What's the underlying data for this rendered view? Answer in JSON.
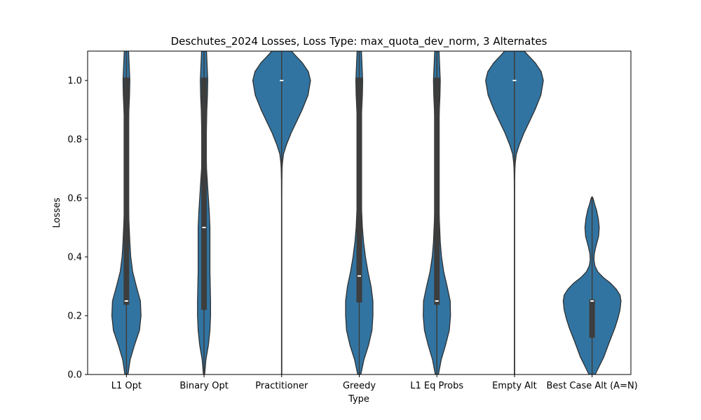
{
  "chart_data": {
    "type": "violin",
    "title": "Deschutes_2024 Losses, Loss Type: max_quota_dev_norm, 3 Alternates",
    "xlabel": "Type",
    "ylabel": "Losses",
    "ylim": [
      0.0,
      1.1
    ],
    "yticks": [
      0.0,
      0.2,
      0.4,
      0.6,
      0.8,
      1.0
    ],
    "ytick_labels": [
      "0.0",
      "0.2",
      "0.4",
      "0.6",
      "0.8",
      "1.0"
    ],
    "categories": [
      "L1 Opt",
      "Binary Opt",
      "Practitioner",
      "Greedy",
      "L1 Eq Probs",
      "Empty Alt",
      "Best Case Alt (A=N)"
    ],
    "colors": {
      "fill": "#3274a1",
      "edge": "#2d2d2d",
      "box": "#3d3d3d",
      "median": "#ffffff"
    },
    "violins": [
      {
        "name": "L1 Opt",
        "q1": 0.237,
        "median": 0.25,
        "q3": 1.01,
        "profile": [
          [
            0.0,
            0.05
          ],
          [
            0.05,
            0.12
          ],
          [
            0.1,
            0.26
          ],
          [
            0.15,
            0.42
          ],
          [
            0.2,
            0.47
          ],
          [
            0.25,
            0.45
          ],
          [
            0.3,
            0.32
          ],
          [
            0.35,
            0.2
          ],
          [
            0.4,
            0.14
          ],
          [
            0.45,
            0.11
          ],
          [
            0.5,
            0.09
          ],
          [
            0.55,
            0.07
          ],
          [
            0.6,
            0.05
          ],
          [
            0.65,
            0.035
          ],
          [
            0.7,
            0.03
          ],
          [
            0.75,
            0.03
          ],
          [
            0.8,
            0.04
          ],
          [
            0.85,
            0.06
          ],
          [
            0.9,
            0.08
          ],
          [
            0.95,
            0.1
          ],
          [
            1.0,
            0.11
          ],
          [
            1.05,
            0.09
          ],
          [
            1.1,
            0.07
          ]
        ]
      },
      {
        "name": "Binary Opt",
        "q1": 0.22,
        "median": 0.5,
        "q3": 1.01,
        "profile": [
          [
            0.0,
            0.02
          ],
          [
            0.05,
            0.06
          ],
          [
            0.1,
            0.14
          ],
          [
            0.15,
            0.19
          ],
          [
            0.2,
            0.21
          ],
          [
            0.25,
            0.21
          ],
          [
            0.3,
            0.2
          ],
          [
            0.35,
            0.19
          ],
          [
            0.4,
            0.19
          ],
          [
            0.45,
            0.19
          ],
          [
            0.5,
            0.19
          ],
          [
            0.55,
            0.17
          ],
          [
            0.6,
            0.14
          ],
          [
            0.65,
            0.11
          ],
          [
            0.7,
            0.08
          ],
          [
            0.75,
            0.07
          ],
          [
            0.8,
            0.07
          ],
          [
            0.85,
            0.08
          ],
          [
            0.9,
            0.09
          ],
          [
            0.95,
            0.11
          ],
          [
            1.0,
            0.12
          ],
          [
            1.05,
            0.1
          ],
          [
            1.1,
            0.08
          ]
        ]
      },
      {
        "name": "Practitioner",
        "q1": 1.0,
        "median": 1.0,
        "q3": 1.0,
        "profile": [
          [
            0.0,
            0.006
          ],
          [
            0.2,
            0.006
          ],
          [
            0.4,
            0.006
          ],
          [
            0.6,
            0.006
          ],
          [
            0.66,
            0.008
          ],
          [
            0.7,
            0.015
          ],
          [
            0.72,
            0.025
          ],
          [
            0.75,
            0.06
          ],
          [
            0.78,
            0.15
          ],
          [
            0.82,
            0.3
          ],
          [
            0.86,
            0.48
          ],
          [
            0.9,
            0.66
          ],
          [
            0.95,
            0.85
          ],
          [
            1.0,
            0.93
          ],
          [
            1.03,
            0.86
          ],
          [
            1.06,
            0.67
          ],
          [
            1.09,
            0.4
          ],
          [
            1.1,
            0.32
          ]
        ]
      },
      {
        "name": "Greedy",
        "q1": 0.245,
        "median": 0.335,
        "q3": 1.01,
        "profile": [
          [
            0.0,
            0.05
          ],
          [
            0.05,
            0.15
          ],
          [
            0.1,
            0.3
          ],
          [
            0.15,
            0.41
          ],
          [
            0.2,
            0.44
          ],
          [
            0.25,
            0.44
          ],
          [
            0.3,
            0.38
          ],
          [
            0.35,
            0.28
          ],
          [
            0.4,
            0.2
          ],
          [
            0.45,
            0.14
          ],
          [
            0.5,
            0.1
          ],
          [
            0.55,
            0.08
          ],
          [
            0.6,
            0.06
          ],
          [
            0.65,
            0.045
          ],
          [
            0.7,
            0.04
          ],
          [
            0.75,
            0.04
          ],
          [
            0.8,
            0.045
          ],
          [
            0.85,
            0.06
          ],
          [
            0.9,
            0.08
          ],
          [
            0.95,
            0.1
          ],
          [
            1.0,
            0.11
          ],
          [
            1.05,
            0.09
          ],
          [
            1.1,
            0.07
          ]
        ]
      },
      {
        "name": "L1 Eq Probs",
        "q1": 0.237,
        "median": 0.25,
        "q3": 1.01,
        "profile": [
          [
            0.0,
            0.05
          ],
          [
            0.05,
            0.14
          ],
          [
            0.1,
            0.28
          ],
          [
            0.15,
            0.4
          ],
          [
            0.2,
            0.44
          ],
          [
            0.25,
            0.43
          ],
          [
            0.3,
            0.33
          ],
          [
            0.35,
            0.22
          ],
          [
            0.4,
            0.15
          ],
          [
            0.45,
            0.11
          ],
          [
            0.5,
            0.09
          ],
          [
            0.55,
            0.07
          ],
          [
            0.6,
            0.05
          ],
          [
            0.65,
            0.035
          ],
          [
            0.7,
            0.03
          ],
          [
            0.75,
            0.03
          ],
          [
            0.8,
            0.04
          ],
          [
            0.85,
            0.06
          ],
          [
            0.9,
            0.08
          ],
          [
            0.95,
            0.1
          ],
          [
            1.0,
            0.11
          ],
          [
            1.05,
            0.09
          ],
          [
            1.1,
            0.07
          ]
        ]
      },
      {
        "name": "Empty Alt",
        "q1": 1.0,
        "median": 1.0,
        "q3": 1.0,
        "profile": [
          [
            0.0,
            0.006
          ],
          [
            0.2,
            0.006
          ],
          [
            0.4,
            0.006
          ],
          [
            0.6,
            0.006
          ],
          [
            0.66,
            0.008
          ],
          [
            0.7,
            0.015
          ],
          [
            0.72,
            0.025
          ],
          [
            0.75,
            0.06
          ],
          [
            0.78,
            0.15
          ],
          [
            0.82,
            0.3
          ],
          [
            0.86,
            0.48
          ],
          [
            0.9,
            0.66
          ],
          [
            0.95,
            0.85
          ],
          [
            1.0,
            0.93
          ],
          [
            1.03,
            0.86
          ],
          [
            1.06,
            0.67
          ],
          [
            1.09,
            0.4
          ],
          [
            1.1,
            0.32
          ]
        ]
      },
      {
        "name": "Best Case Alt (A=N)",
        "q1": 0.125,
        "median": 0.25,
        "q3": 0.255,
        "profile": [
          [
            0.0,
            0.1
          ],
          [
            0.03,
            0.24
          ],
          [
            0.06,
            0.38
          ],
          [
            0.1,
            0.52
          ],
          [
            0.13,
            0.63
          ],
          [
            0.16,
            0.74
          ],
          [
            0.19,
            0.83
          ],
          [
            0.22,
            0.9
          ],
          [
            0.25,
            0.93
          ],
          [
            0.27,
            0.9
          ],
          [
            0.29,
            0.78
          ],
          [
            0.31,
            0.6
          ],
          [
            0.33,
            0.36
          ],
          [
            0.35,
            0.18
          ],
          [
            0.37,
            0.09
          ],
          [
            0.39,
            0.06
          ],
          [
            0.41,
            0.07
          ],
          [
            0.43,
            0.11
          ],
          [
            0.45,
            0.16
          ],
          [
            0.47,
            0.21
          ],
          [
            0.5,
            0.23
          ],
          [
            0.53,
            0.2
          ],
          [
            0.56,
            0.14
          ],
          [
            0.58,
            0.08
          ],
          [
            0.6,
            0.03
          ],
          [
            0.605,
            0.0
          ]
        ]
      }
    ]
  }
}
